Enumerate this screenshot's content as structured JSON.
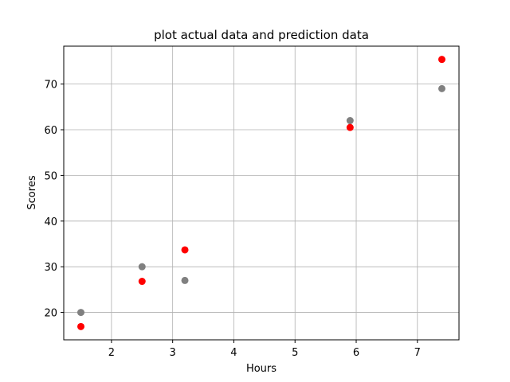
{
  "chart_data": {
    "type": "scatter",
    "title": "plot actual data and prediction data",
    "xlabel": "Hours",
    "ylabel": "Scores",
    "xlim": [
      1.22,
      7.68
    ],
    "ylim": [
      14.0,
      78.3
    ],
    "xticks": [
      2,
      3,
      4,
      5,
      6,
      7
    ],
    "yticks": [
      20,
      30,
      40,
      50,
      60,
      70
    ],
    "grid": true,
    "legend": "none",
    "series": [
      {
        "color": "#808080",
        "points": [
          {
            "x": 1.5,
            "y": 20
          },
          {
            "x": 2.5,
            "y": 30
          },
          {
            "x": 3.2,
            "y": 27
          },
          {
            "x": 5.9,
            "y": 62
          },
          {
            "x": 7.4,
            "y": 69
          }
        ]
      },
      {
        "color": "#ff0000",
        "points": [
          {
            "x": 1.5,
            "y": 16.9
          },
          {
            "x": 2.5,
            "y": 26.8
          },
          {
            "x": 3.2,
            "y": 33.7
          },
          {
            "x": 5.9,
            "y": 60.5
          },
          {
            "x": 7.4,
            "y": 75.4
          }
        ]
      }
    ]
  }
}
